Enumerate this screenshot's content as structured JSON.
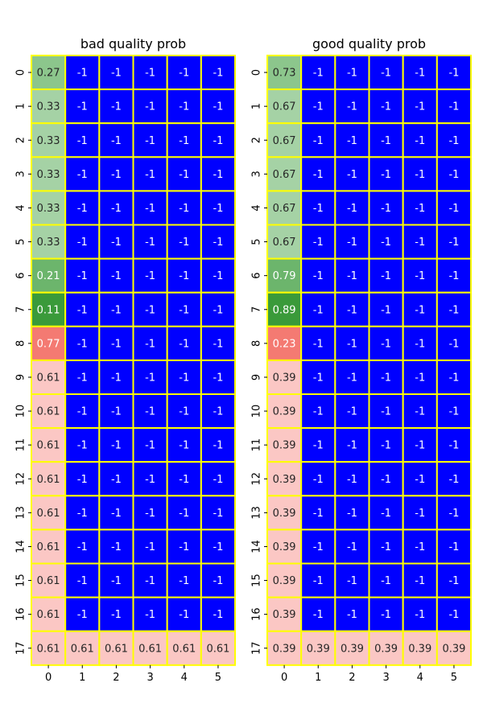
{
  "chart_data": [
    {
      "type": "heatmap",
      "title": "bad quality prob",
      "x_tick_labels": [
        "0",
        "1",
        "2",
        "3",
        "4",
        "5"
      ],
      "y_tick_labels": [
        "0",
        "1",
        "2",
        "3",
        "4",
        "5",
        "6",
        "7",
        "8",
        "9",
        "10",
        "11",
        "12",
        "13",
        "14",
        "15",
        "16",
        "17"
      ],
      "values": [
        [
          0.27,
          -1,
          -1,
          -1,
          -1,
          -1
        ],
        [
          0.33,
          -1,
          -1,
          -1,
          -1,
          -1
        ],
        [
          0.33,
          -1,
          -1,
          -1,
          -1,
          -1
        ],
        [
          0.33,
          -1,
          -1,
          -1,
          -1,
          -1
        ],
        [
          0.33,
          -1,
          -1,
          -1,
          -1,
          -1
        ],
        [
          0.33,
          -1,
          -1,
          -1,
          -1,
          -1
        ],
        [
          0.21,
          -1,
          -1,
          -1,
          -1,
          -1
        ],
        [
          0.11,
          -1,
          -1,
          -1,
          -1,
          -1
        ],
        [
          0.77,
          -1,
          -1,
          -1,
          -1,
          -1
        ],
        [
          0.61,
          -1,
          -1,
          -1,
          -1,
          -1
        ],
        [
          0.61,
          -1,
          -1,
          -1,
          -1,
          -1
        ],
        [
          0.61,
          -1,
          -1,
          -1,
          -1,
          -1
        ],
        [
          0.61,
          -1,
          -1,
          -1,
          -1,
          -1
        ],
        [
          0.61,
          -1,
          -1,
          -1,
          -1,
          -1
        ],
        [
          0.61,
          -1,
          -1,
          -1,
          -1,
          -1
        ],
        [
          0.61,
          -1,
          -1,
          -1,
          -1,
          -1
        ],
        [
          0.61,
          -1,
          -1,
          -1,
          -1,
          -1
        ],
        [
          0.61,
          0.61,
          0.61,
          0.61,
          0.61,
          0.61
        ]
      ],
      "cell_colors": [
        [
          "#8cc68c",
          "#0000ff",
          "#0000ff",
          "#0000ff",
          "#0000ff",
          "#0000ff"
        ],
        [
          "#a5d2a5",
          "#0000ff",
          "#0000ff",
          "#0000ff",
          "#0000ff",
          "#0000ff"
        ],
        [
          "#a5d2a5",
          "#0000ff",
          "#0000ff",
          "#0000ff",
          "#0000ff",
          "#0000ff"
        ],
        [
          "#a5d2a5",
          "#0000ff",
          "#0000ff",
          "#0000ff",
          "#0000ff",
          "#0000ff"
        ],
        [
          "#a5d2a5",
          "#0000ff",
          "#0000ff",
          "#0000ff",
          "#0000ff",
          "#0000ff"
        ],
        [
          "#a5d2a5",
          "#0000ff",
          "#0000ff",
          "#0000ff",
          "#0000ff",
          "#0000ff"
        ],
        [
          "#6cb56c",
          "#0000ff",
          "#0000ff",
          "#0000ff",
          "#0000ff",
          "#0000ff"
        ],
        [
          "#3a9a3a",
          "#0000ff",
          "#0000ff",
          "#0000ff",
          "#0000ff",
          "#0000ff"
        ],
        [
          "#f47a72",
          "#0000ff",
          "#0000ff",
          "#0000ff",
          "#0000ff",
          "#0000ff"
        ],
        [
          "#fbc7c4",
          "#0000ff",
          "#0000ff",
          "#0000ff",
          "#0000ff",
          "#0000ff"
        ],
        [
          "#fbc7c4",
          "#0000ff",
          "#0000ff",
          "#0000ff",
          "#0000ff",
          "#0000ff"
        ],
        [
          "#fbc7c4",
          "#0000ff",
          "#0000ff",
          "#0000ff",
          "#0000ff",
          "#0000ff"
        ],
        [
          "#fbc7c4",
          "#0000ff",
          "#0000ff",
          "#0000ff",
          "#0000ff",
          "#0000ff"
        ],
        [
          "#fbc7c4",
          "#0000ff",
          "#0000ff",
          "#0000ff",
          "#0000ff",
          "#0000ff"
        ],
        [
          "#fbc7c4",
          "#0000ff",
          "#0000ff",
          "#0000ff",
          "#0000ff",
          "#0000ff"
        ],
        [
          "#fbc7c4",
          "#0000ff",
          "#0000ff",
          "#0000ff",
          "#0000ff",
          "#0000ff"
        ],
        [
          "#fbc7c4",
          "#0000ff",
          "#0000ff",
          "#0000ff",
          "#0000ff",
          "#0000ff"
        ],
        [
          "#fbc7c4",
          "#fbc7c4",
          "#fbc7c4",
          "#fbc7c4",
          "#fbc7c4",
          "#fbc7c4"
        ]
      ],
      "label_colors": [
        [
          "#262626",
          "#ffffff",
          "#ffffff",
          "#ffffff",
          "#ffffff",
          "#ffffff"
        ],
        [
          "#262626",
          "#ffffff",
          "#ffffff",
          "#ffffff",
          "#ffffff",
          "#ffffff"
        ],
        [
          "#262626",
          "#ffffff",
          "#ffffff",
          "#ffffff",
          "#ffffff",
          "#ffffff"
        ],
        [
          "#262626",
          "#ffffff",
          "#ffffff",
          "#ffffff",
          "#ffffff",
          "#ffffff"
        ],
        [
          "#262626",
          "#ffffff",
          "#ffffff",
          "#ffffff",
          "#ffffff",
          "#ffffff"
        ],
        [
          "#262626",
          "#ffffff",
          "#ffffff",
          "#ffffff",
          "#ffffff",
          "#ffffff"
        ],
        [
          "#ffffff",
          "#ffffff",
          "#ffffff",
          "#ffffff",
          "#ffffff",
          "#ffffff"
        ],
        [
          "#ffffff",
          "#ffffff",
          "#ffffff",
          "#ffffff",
          "#ffffff",
          "#ffffff"
        ],
        [
          "#ffffff",
          "#ffffff",
          "#ffffff",
          "#ffffff",
          "#ffffff",
          "#ffffff"
        ],
        [
          "#262626",
          "#ffffff",
          "#ffffff",
          "#ffffff",
          "#ffffff",
          "#ffffff"
        ],
        [
          "#262626",
          "#ffffff",
          "#ffffff",
          "#ffffff",
          "#ffffff",
          "#ffffff"
        ],
        [
          "#262626",
          "#ffffff",
          "#ffffff",
          "#ffffff",
          "#ffffff",
          "#ffffff"
        ],
        [
          "#262626",
          "#ffffff",
          "#ffffff",
          "#ffffff",
          "#ffffff",
          "#ffffff"
        ],
        [
          "#262626",
          "#ffffff",
          "#ffffff",
          "#ffffff",
          "#ffffff",
          "#ffffff"
        ],
        [
          "#262626",
          "#ffffff",
          "#ffffff",
          "#ffffff",
          "#ffffff",
          "#ffffff"
        ],
        [
          "#262626",
          "#ffffff",
          "#ffffff",
          "#ffffff",
          "#ffffff",
          "#ffffff"
        ],
        [
          "#262626",
          "#ffffff",
          "#ffffff",
          "#ffffff",
          "#ffffff",
          "#ffffff"
        ],
        [
          "#262626",
          "#262626",
          "#262626",
          "#262626",
          "#262626",
          "#262626"
        ]
      ],
      "grid_line_color": "#ffff00",
      "grid": true,
      "legend": "none"
    },
    {
      "type": "heatmap",
      "title": "good quality prob",
      "x_tick_labels": [
        "0",
        "1",
        "2",
        "3",
        "4",
        "5"
      ],
      "y_tick_labels": [
        "0",
        "1",
        "2",
        "3",
        "4",
        "5",
        "6",
        "7",
        "8",
        "9",
        "10",
        "11",
        "12",
        "13",
        "14",
        "15",
        "16",
        "17"
      ],
      "values": [
        [
          0.73,
          -1,
          -1,
          -1,
          -1,
          -1
        ],
        [
          0.67,
          -1,
          -1,
          -1,
          -1,
          -1
        ],
        [
          0.67,
          -1,
          -1,
          -1,
          -1,
          -1
        ],
        [
          0.67,
          -1,
          -1,
          -1,
          -1,
          -1
        ],
        [
          0.67,
          -1,
          -1,
          -1,
          -1,
          -1
        ],
        [
          0.67,
          -1,
          -1,
          -1,
          -1,
          -1
        ],
        [
          0.79,
          -1,
          -1,
          -1,
          -1,
          -1
        ],
        [
          0.89,
          -1,
          -1,
          -1,
          -1,
          -1
        ],
        [
          0.23,
          -1,
          -1,
          -1,
          -1,
          -1
        ],
        [
          0.39,
          -1,
          -1,
          -1,
          -1,
          -1
        ],
        [
          0.39,
          -1,
          -1,
          -1,
          -1,
          -1
        ],
        [
          0.39,
          -1,
          -1,
          -1,
          -1,
          -1
        ],
        [
          0.39,
          -1,
          -1,
          -1,
          -1,
          -1
        ],
        [
          0.39,
          -1,
          -1,
          -1,
          -1,
          -1
        ],
        [
          0.39,
          -1,
          -1,
          -1,
          -1,
          -1
        ],
        [
          0.39,
          -1,
          -1,
          -1,
          -1,
          -1
        ],
        [
          0.39,
          -1,
          -1,
          -1,
          -1,
          -1
        ],
        [
          0.39,
          0.39,
          0.39,
          0.39,
          0.39,
          0.39
        ]
      ],
      "cell_colors": [
        [
          "#8cc68c",
          "#0000ff",
          "#0000ff",
          "#0000ff",
          "#0000ff",
          "#0000ff"
        ],
        [
          "#a5d2a5",
          "#0000ff",
          "#0000ff",
          "#0000ff",
          "#0000ff",
          "#0000ff"
        ],
        [
          "#a5d2a5",
          "#0000ff",
          "#0000ff",
          "#0000ff",
          "#0000ff",
          "#0000ff"
        ],
        [
          "#a5d2a5",
          "#0000ff",
          "#0000ff",
          "#0000ff",
          "#0000ff",
          "#0000ff"
        ],
        [
          "#a5d2a5",
          "#0000ff",
          "#0000ff",
          "#0000ff",
          "#0000ff",
          "#0000ff"
        ],
        [
          "#a5d2a5",
          "#0000ff",
          "#0000ff",
          "#0000ff",
          "#0000ff",
          "#0000ff"
        ],
        [
          "#6cb56c",
          "#0000ff",
          "#0000ff",
          "#0000ff",
          "#0000ff",
          "#0000ff"
        ],
        [
          "#3a9a3a",
          "#0000ff",
          "#0000ff",
          "#0000ff",
          "#0000ff",
          "#0000ff"
        ],
        [
          "#f47a72",
          "#0000ff",
          "#0000ff",
          "#0000ff",
          "#0000ff",
          "#0000ff"
        ],
        [
          "#fbc7c4",
          "#0000ff",
          "#0000ff",
          "#0000ff",
          "#0000ff",
          "#0000ff"
        ],
        [
          "#fbc7c4",
          "#0000ff",
          "#0000ff",
          "#0000ff",
          "#0000ff",
          "#0000ff"
        ],
        [
          "#fbc7c4",
          "#0000ff",
          "#0000ff",
          "#0000ff",
          "#0000ff",
          "#0000ff"
        ],
        [
          "#fbc7c4",
          "#0000ff",
          "#0000ff",
          "#0000ff",
          "#0000ff",
          "#0000ff"
        ],
        [
          "#fbc7c4",
          "#0000ff",
          "#0000ff",
          "#0000ff",
          "#0000ff",
          "#0000ff"
        ],
        [
          "#fbc7c4",
          "#0000ff",
          "#0000ff",
          "#0000ff",
          "#0000ff",
          "#0000ff"
        ],
        [
          "#fbc7c4",
          "#0000ff",
          "#0000ff",
          "#0000ff",
          "#0000ff",
          "#0000ff"
        ],
        [
          "#fbc7c4",
          "#0000ff",
          "#0000ff",
          "#0000ff",
          "#0000ff",
          "#0000ff"
        ],
        [
          "#fbc7c4",
          "#fbc7c4",
          "#fbc7c4",
          "#fbc7c4",
          "#fbc7c4",
          "#fbc7c4"
        ]
      ],
      "label_colors": [
        [
          "#262626",
          "#ffffff",
          "#ffffff",
          "#ffffff",
          "#ffffff",
          "#ffffff"
        ],
        [
          "#262626",
          "#ffffff",
          "#ffffff",
          "#ffffff",
          "#ffffff",
          "#ffffff"
        ],
        [
          "#262626",
          "#ffffff",
          "#ffffff",
          "#ffffff",
          "#ffffff",
          "#ffffff"
        ],
        [
          "#262626",
          "#ffffff",
          "#ffffff",
          "#ffffff",
          "#ffffff",
          "#ffffff"
        ],
        [
          "#262626",
          "#ffffff",
          "#ffffff",
          "#ffffff",
          "#ffffff",
          "#ffffff"
        ],
        [
          "#262626",
          "#ffffff",
          "#ffffff",
          "#ffffff",
          "#ffffff",
          "#ffffff"
        ],
        [
          "#ffffff",
          "#ffffff",
          "#ffffff",
          "#ffffff",
          "#ffffff",
          "#ffffff"
        ],
        [
          "#ffffff",
          "#ffffff",
          "#ffffff",
          "#ffffff",
          "#ffffff",
          "#ffffff"
        ],
        [
          "#ffffff",
          "#ffffff",
          "#ffffff",
          "#ffffff",
          "#ffffff",
          "#ffffff"
        ],
        [
          "#262626",
          "#ffffff",
          "#ffffff",
          "#ffffff",
          "#ffffff",
          "#ffffff"
        ],
        [
          "#262626",
          "#ffffff",
          "#ffffff",
          "#ffffff",
          "#ffffff",
          "#ffffff"
        ],
        [
          "#262626",
          "#ffffff",
          "#ffffff",
          "#ffffff",
          "#ffffff",
          "#ffffff"
        ],
        [
          "#262626",
          "#ffffff",
          "#ffffff",
          "#ffffff",
          "#ffffff",
          "#ffffff"
        ],
        [
          "#262626",
          "#ffffff",
          "#ffffff",
          "#ffffff",
          "#ffffff",
          "#ffffff"
        ],
        [
          "#262626",
          "#ffffff",
          "#ffffff",
          "#ffffff",
          "#ffffff",
          "#ffffff"
        ],
        [
          "#262626",
          "#ffffff",
          "#ffffff",
          "#ffffff",
          "#ffffff",
          "#ffffff"
        ],
        [
          "#262626",
          "#ffffff",
          "#ffffff",
          "#ffffff",
          "#ffffff",
          "#ffffff"
        ],
        [
          "#262626",
          "#262626",
          "#262626",
          "#262626",
          "#262626",
          "#262626"
        ]
      ],
      "grid_line_color": "#ffff00",
      "grid": true,
      "legend": "none"
    }
  ]
}
